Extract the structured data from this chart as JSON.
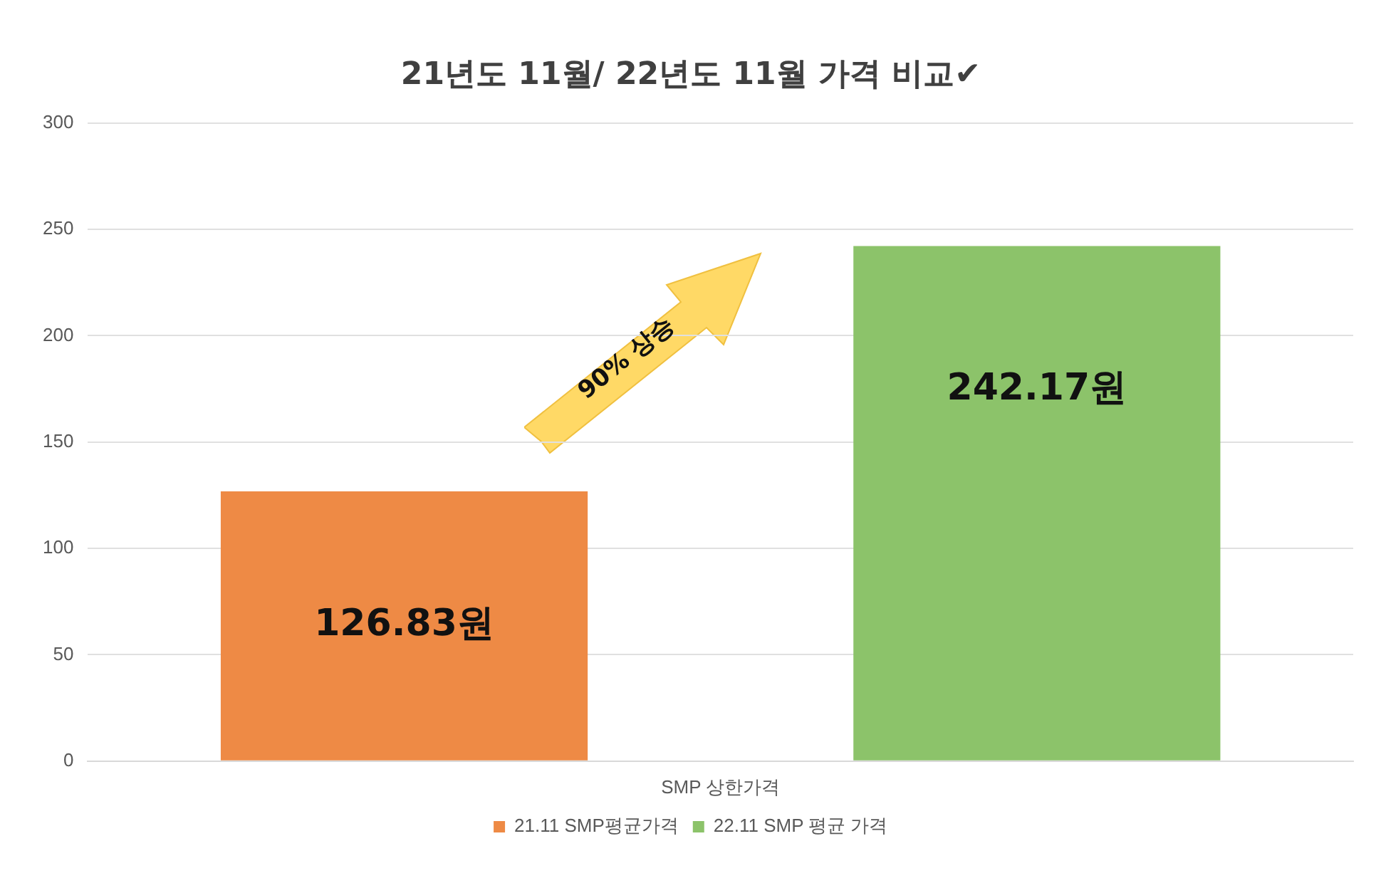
{
  "chart_data": {
    "type": "bar",
    "title": "21년도 11월/ 22년도 11월 가격 비교✔",
    "categories": [
      "SMP 상한가격"
    ],
    "series": [
      {
        "name": "21.11 SMP평균가격",
        "color": "#ee8a45",
        "values": [
          126.83
        ],
        "value_labels": [
          "126.83원"
        ]
      },
      {
        "name": "22.11 SMP 평균 가격",
        "color": "#8cc36a",
        "values": [
          242.17
        ],
        "value_labels": [
          "242.17원"
        ]
      }
    ],
    "ylim": [
      0,
      300
    ],
    "yticks": [
      0,
      50,
      100,
      150,
      200,
      250,
      300
    ],
    "grid": "y",
    "legend": "bottom",
    "annotations": [
      "90% 상승"
    ]
  }
}
